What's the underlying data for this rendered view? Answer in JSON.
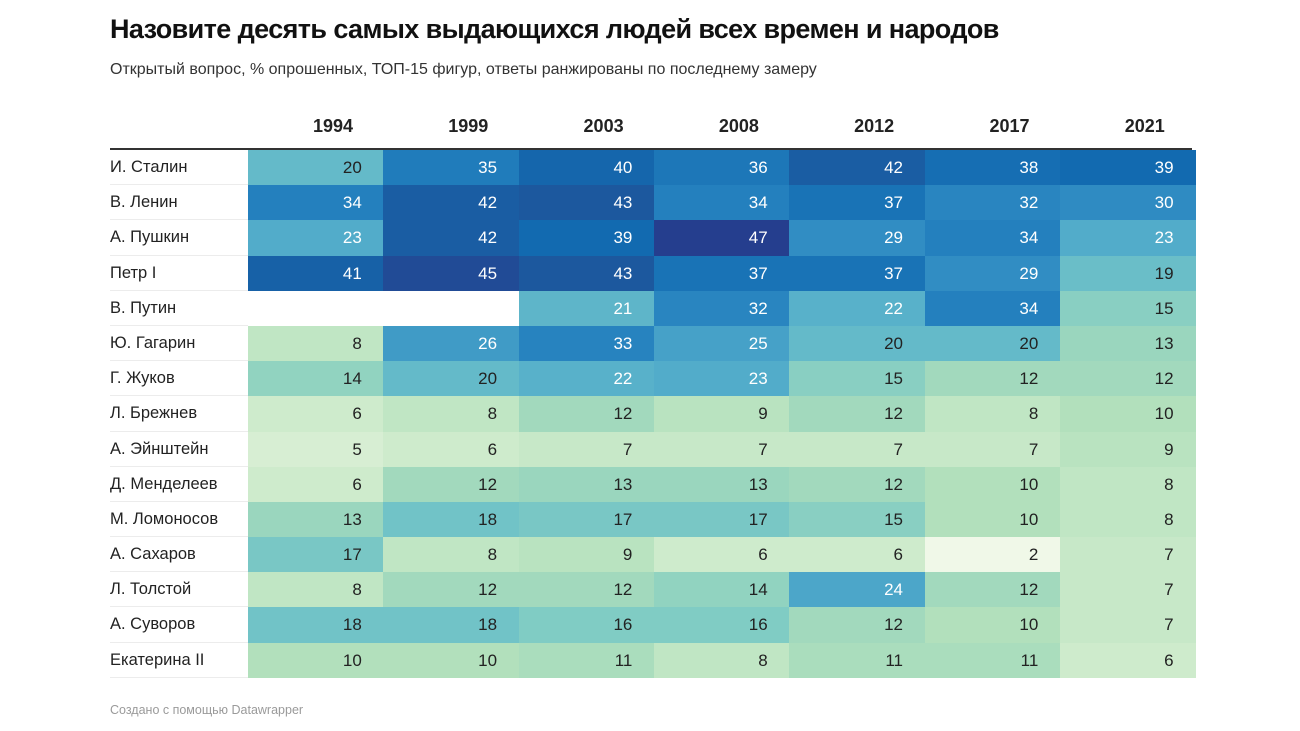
{
  "title": "Назовите десять самых выдающихся людей всех времен и народов",
  "subtitle": "Открытый вопрос, % опрошенных, ТОП-15 фигур, ответы ранжированы по последнему замеру",
  "footer": "Создано с помощью Datawrapper",
  "chart_data": {
    "type": "heatmap",
    "title": "Назовите десять самых выдающихся людей всех времен и народов",
    "subtitle": "Открытый вопрос, % опрошенных, ТОП-15 фигур, ответы ранжированы по последнему замеру",
    "columns": [
      "1994",
      "1999",
      "2003",
      "2008",
      "2012",
      "2017",
      "2021"
    ],
    "color_scale": {
      "min": 2,
      "max": 47,
      "low_color": "#f0f8e8",
      "high_color": "#253e8e"
    },
    "rows": [
      {
        "name": "И. Сталин",
        "values": [
          20,
          35,
          40,
          36,
          42,
          38,
          39
        ]
      },
      {
        "name": "В. Ленин",
        "values": [
          34,
          42,
          43,
          34,
          37,
          32,
          30
        ]
      },
      {
        "name": "А. Пушкин",
        "values": [
          23,
          42,
          39,
          47,
          29,
          34,
          23
        ]
      },
      {
        "name": "Петр I",
        "values": [
          41,
          45,
          43,
          37,
          37,
          29,
          19
        ]
      },
      {
        "name": "В. Путин",
        "values": [
          null,
          null,
          21,
          32,
          22,
          34,
          15
        ]
      },
      {
        "name": "Ю. Гагарин",
        "values": [
          8,
          26,
          33,
          25,
          20,
          20,
          13
        ]
      },
      {
        "name": "Г. Жуков",
        "values": [
          14,
          20,
          22,
          23,
          15,
          12,
          12
        ]
      },
      {
        "name": "Л. Брежнев",
        "values": [
          6,
          8,
          12,
          9,
          12,
          8,
          10
        ]
      },
      {
        "name": "А. Эйнштейн",
        "values": [
          5,
          6,
          7,
          7,
          7,
          7,
          9
        ]
      },
      {
        "name": "Д. Менделеев",
        "values": [
          6,
          12,
          13,
          13,
          12,
          10,
          8
        ]
      },
      {
        "name": "М. Ломоносов",
        "values": [
          13,
          18,
          17,
          17,
          15,
          10,
          8
        ]
      },
      {
        "name": "А. Сахаров",
        "values": [
          17,
          8,
          9,
          6,
          6,
          2,
          7
        ]
      },
      {
        "name": "Л. Толстой",
        "values": [
          8,
          12,
          12,
          14,
          24,
          12,
          7
        ]
      },
      {
        "name": "А. Суворов",
        "values": [
          18,
          18,
          16,
          16,
          12,
          10,
          7
        ]
      },
      {
        "name": "Екатерина II",
        "values": [
          10,
          10,
          11,
          8,
          11,
          11,
          6
        ]
      }
    ]
  }
}
